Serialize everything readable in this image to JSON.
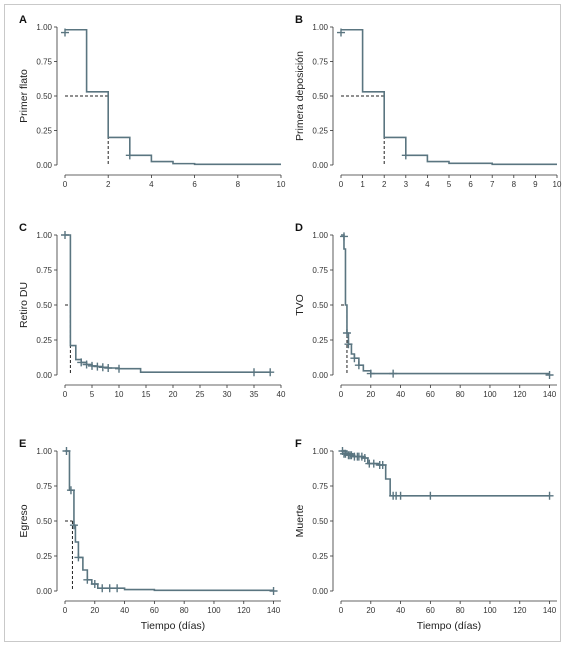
{
  "line_color": "#5a7580",
  "median_line_color": "#222222",
  "chart_data": [
    {
      "type": "line",
      "subtype": "kaplan-meier step",
      "panel": "A",
      "ylabel": "Primer flato",
      "xlabel": "",
      "xlim": [
        0,
        10
      ],
      "ylim": [
        0,
        1
      ],
      "xticks": [
        "0",
        "2",
        "4",
        "6",
        "8",
        "10"
      ],
      "yticks": [
        "0.00",
        "0.25",
        "0.50",
        "0.75",
        "1.00"
      ],
      "steps": [
        [
          0,
          0.98
        ],
        [
          1,
          0.53
        ],
        [
          2,
          0.2
        ],
        [
          3,
          0.07
        ],
        [
          4,
          0.025
        ],
        [
          5,
          0.01
        ],
        [
          6,
          0.005
        ],
        [
          10,
          0.005
        ]
      ],
      "censors": [
        [
          0,
          0.96
        ],
        [
          3,
          0.07
        ]
      ],
      "median": 2
    },
    {
      "type": "line",
      "subtype": "kaplan-meier step",
      "panel": "B",
      "ylabel": "Primera deposición",
      "xlabel": "",
      "xlim": [
        0,
        10
      ],
      "ylim": [
        0,
        1
      ],
      "xticks": [
        "0",
        "1",
        "2",
        "3",
        "4",
        "5",
        "6",
        "7",
        "8",
        "9",
        "10"
      ],
      "yticks": [
        "0.00",
        "0.25",
        "0.50",
        "0.75",
        "1.00"
      ],
      "steps": [
        [
          0,
          0.98
        ],
        [
          1,
          0.53
        ],
        [
          2,
          0.2
        ],
        [
          3,
          0.07
        ],
        [
          4,
          0.025
        ],
        [
          5,
          0.012
        ],
        [
          7,
          0.005
        ],
        [
          10,
          0.005
        ]
      ],
      "censors": [
        [
          0,
          0.96
        ],
        [
          3,
          0.07
        ]
      ],
      "median": 2
    },
    {
      "type": "line",
      "subtype": "kaplan-meier step",
      "panel": "C",
      "ylabel": "Retiro DU",
      "xlabel": "",
      "xlim": [
        0,
        40
      ],
      "ylim": [
        0,
        1
      ],
      "xticks": [
        "0",
        "5",
        "10",
        "15",
        "20",
        "25",
        "30",
        "35",
        "40"
      ],
      "yticks": [
        "0.00",
        "0.25",
        "0.50",
        "0.75",
        "1.00"
      ],
      "steps": [
        [
          0,
          1.0
        ],
        [
          1,
          0.21
        ],
        [
          2,
          0.11
        ],
        [
          3,
          0.09
        ],
        [
          4,
          0.075
        ],
        [
          5,
          0.065
        ],
        [
          6,
          0.06
        ],
        [
          7,
          0.055
        ],
        [
          8,
          0.05
        ],
        [
          10,
          0.045
        ],
        [
          14,
          0.02
        ],
        [
          38,
          0.02
        ]
      ],
      "censors": [
        [
          0,
          1.0
        ],
        [
          3,
          0.09
        ],
        [
          4,
          0.075
        ],
        [
          5,
          0.065
        ],
        [
          6,
          0.06
        ],
        [
          7,
          0.055
        ],
        [
          8,
          0.05
        ],
        [
          10,
          0.045
        ],
        [
          35,
          0.02
        ],
        [
          38,
          0.02
        ]
      ],
      "median": 1
    },
    {
      "type": "line",
      "subtype": "kaplan-meier step",
      "panel": "D",
      "ylabel": "TVO",
      "xlabel": "",
      "xlim": [
        0,
        145
      ],
      "ylim": [
        0,
        1
      ],
      "xticks": [
        "0",
        "20",
        "40",
        "60",
        "80",
        "100",
        "120",
        "140"
      ],
      "yticks": [
        "0.00",
        "0.25",
        "0.50",
        "0.75",
        "1.00"
      ],
      "steps": [
        [
          0,
          1.0
        ],
        [
          2,
          0.9
        ],
        [
          3,
          0.5
        ],
        [
          4,
          0.3
        ],
        [
          5,
          0.22
        ],
        [
          7,
          0.15
        ],
        [
          9,
          0.12
        ],
        [
          12,
          0.07
        ],
        [
          15,
          0.03
        ],
        [
          20,
          0.01
        ],
        [
          40,
          0.01
        ],
        [
          140,
          0.01
        ]
      ],
      "censors": [
        [
          2,
          0.99
        ],
        [
          4,
          0.3
        ],
        [
          5,
          0.22
        ],
        [
          9,
          0.12
        ],
        [
          12,
          0.07
        ],
        [
          20,
          0.01
        ],
        [
          35,
          0.01
        ],
        [
          140,
          0.0
        ]
      ],
      "median": 4
    },
    {
      "type": "line",
      "subtype": "kaplan-meier step",
      "panel": "E",
      "ylabel": "Egreso",
      "xlabel": "Tiempo (días)",
      "xlim": [
        0,
        145
      ],
      "ylim": [
        0,
        1
      ],
      "xticks": [
        "0",
        "20",
        "40",
        "60",
        "80",
        "100",
        "120",
        "140"
      ],
      "yticks": [
        "0.00",
        "0.25",
        "0.50",
        "0.75",
        "1.00"
      ],
      "steps": [
        [
          0,
          1.0
        ],
        [
          3,
          0.72
        ],
        [
          6,
          0.47
        ],
        [
          7,
          0.35
        ],
        [
          9,
          0.24
        ],
        [
          12,
          0.15
        ],
        [
          15,
          0.08
        ],
        [
          18,
          0.05
        ],
        [
          22,
          0.02
        ],
        [
          40,
          0.01
        ],
        [
          60,
          0.005
        ],
        [
          140,
          0.005
        ]
      ],
      "censors": [
        [
          1,
          1.0
        ],
        [
          4,
          0.72
        ],
        [
          6,
          0.47
        ],
        [
          9,
          0.24
        ],
        [
          15,
          0.08
        ],
        [
          20,
          0.05
        ],
        [
          25,
          0.02
        ],
        [
          30,
          0.02
        ],
        [
          35,
          0.02
        ],
        [
          140,
          0.0
        ]
      ],
      "median": 5
    },
    {
      "type": "line",
      "subtype": "kaplan-meier step",
      "panel": "F",
      "ylabel": "Muerte",
      "xlabel": "Tiempo (días)",
      "xlim": [
        0,
        145
      ],
      "ylim": [
        0,
        1
      ],
      "xticks": [
        "0",
        "20",
        "40",
        "60",
        "80",
        "100",
        "120",
        "140"
      ],
      "yticks": [
        "0.00",
        "0.25",
        "0.50",
        "0.75",
        "1.00"
      ],
      "steps": [
        [
          0,
          1.0
        ],
        [
          4,
          0.98
        ],
        [
          8,
          0.96
        ],
        [
          15,
          0.95
        ],
        [
          18,
          0.91
        ],
        [
          25,
          0.9
        ],
        [
          30,
          0.8
        ],
        [
          33,
          0.68
        ],
        [
          140,
          0.68
        ]
      ],
      "censors": [
        [
          1,
          1.0
        ],
        [
          2,
          0.98
        ],
        [
          3,
          0.98
        ],
        [
          5,
          0.97
        ],
        [
          6,
          0.97
        ],
        [
          7,
          0.97
        ],
        [
          9,
          0.96
        ],
        [
          11,
          0.96
        ],
        [
          12,
          0.96
        ],
        [
          14,
          0.96
        ],
        [
          16,
          0.95
        ],
        [
          19,
          0.91
        ],
        [
          22,
          0.91
        ],
        [
          26,
          0.9
        ],
        [
          28,
          0.9
        ],
        [
          35,
          0.68
        ],
        [
          37,
          0.68
        ],
        [
          40,
          0.68
        ],
        [
          60,
          0.68
        ],
        [
          140,
          0.68
        ]
      ],
      "median": null
    }
  ]
}
